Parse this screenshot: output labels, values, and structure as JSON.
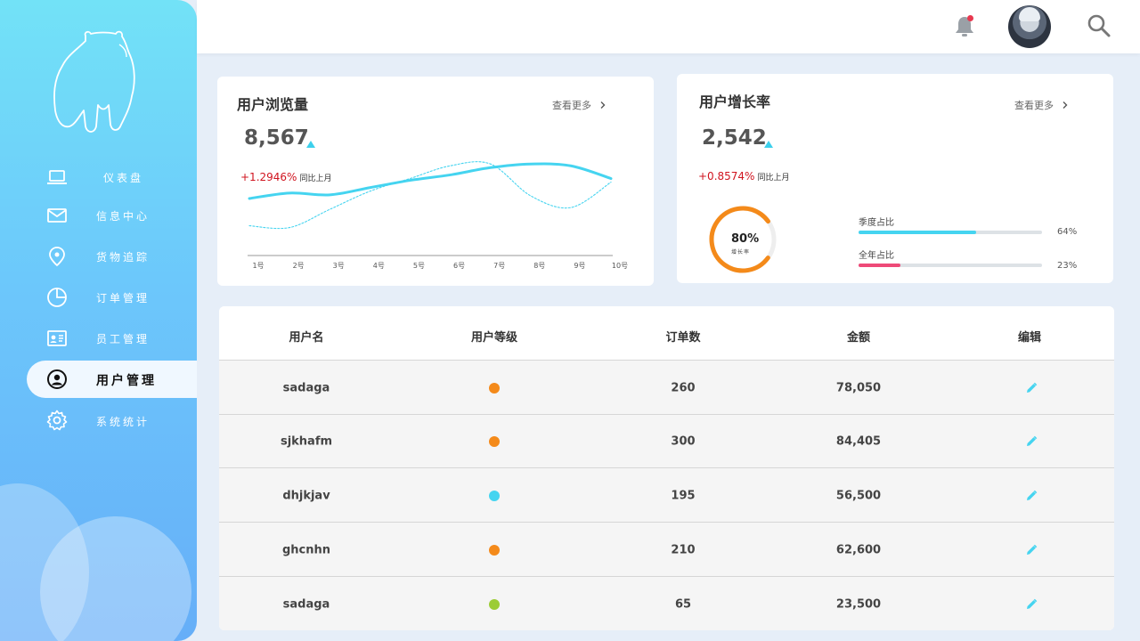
{
  "sidebar": {
    "items": [
      {
        "label": "仪表盘",
        "icon": "laptop-icon"
      },
      {
        "label": "信息中心",
        "icon": "mail-icon"
      },
      {
        "label": "货物追踪",
        "icon": "location-pin-icon"
      },
      {
        "label": "订单管理",
        "icon": "pie-chart-icon"
      },
      {
        "label": "员工管理",
        "icon": "id-card-icon"
      },
      {
        "label": "用户管理",
        "icon": "user-circle-icon",
        "active": true
      },
      {
        "label": "系统统计",
        "icon": "gear-icon"
      }
    ]
  },
  "header": {
    "notification_icon": "bell-icon",
    "notification_dot_color": "#e8384f",
    "search_icon": "search-icon"
  },
  "views_card": {
    "title": "用户浏览量",
    "more_label": "查看更多",
    "value": "8,567",
    "change": "+1.2946%",
    "compare_label": "同比上月"
  },
  "growth_card": {
    "title": "用户增长率",
    "more_label": "查看更多",
    "value": "2,542",
    "change": "+0.8574%",
    "compare_label": "同比上月",
    "gauge_value": "80%",
    "gauge_fraction": 0.8,
    "gauge_label": "增长率",
    "bars": [
      {
        "label": "季度占比",
        "value": "64%",
        "fraction": 0.64,
        "color": "#45d4f0"
      },
      {
        "label": "全年占比",
        "value": "23%",
        "fraction": 0.23,
        "color": "#ee4a78"
      }
    ]
  },
  "chart_data": {
    "type": "line",
    "x": [
      "1号",
      "2号",
      "3号",
      "4号",
      "5号",
      "6号",
      "7号",
      "8号",
      "9号",
      "10号"
    ],
    "series": [
      {
        "values": [
          52,
          58,
          56,
          64,
          72,
          78,
          86,
          90,
          88,
          74
        ],
        "style": "solid",
        "color": "#45d4f0"
      },
      {
        "values": [
          22,
          20,
          40,
          60,
          74,
          88,
          90,
          55,
          42,
          70
        ],
        "style": "dotted",
        "color": "#45d4f0"
      }
    ],
    "ylim": [
      0,
      100
    ],
    "title": "",
    "xlabel": "",
    "ylabel": "",
    "grid": false
  },
  "table": {
    "headers": [
      "用户名",
      "用户等级",
      "订单数",
      "金额",
      "编辑"
    ],
    "rows": [
      {
        "name": "sadaga",
        "level_color": "#f48a1a",
        "orders": "260",
        "amount": "78,050"
      },
      {
        "name": "sjkhafm",
        "level_color": "#f48a1a",
        "orders": "300",
        "amount": "84,405"
      },
      {
        "name": "dhjkjav",
        "level_color": "#45d4f0",
        "orders": "195",
        "amount": "56,500"
      },
      {
        "name": "ghcnhn",
        "level_color": "#f48a1a",
        "orders": "210",
        "amount": "62,600"
      },
      {
        "name": "sadaga",
        "level_color": "#9ccc35",
        "orders": "65",
        "amount": "23,500"
      }
    ],
    "edit_icon": "pencil-icon"
  },
  "colors": {
    "accent": "#45d4f0",
    "gauge": "#f48a1a",
    "negative_text": "#d0141f"
  }
}
